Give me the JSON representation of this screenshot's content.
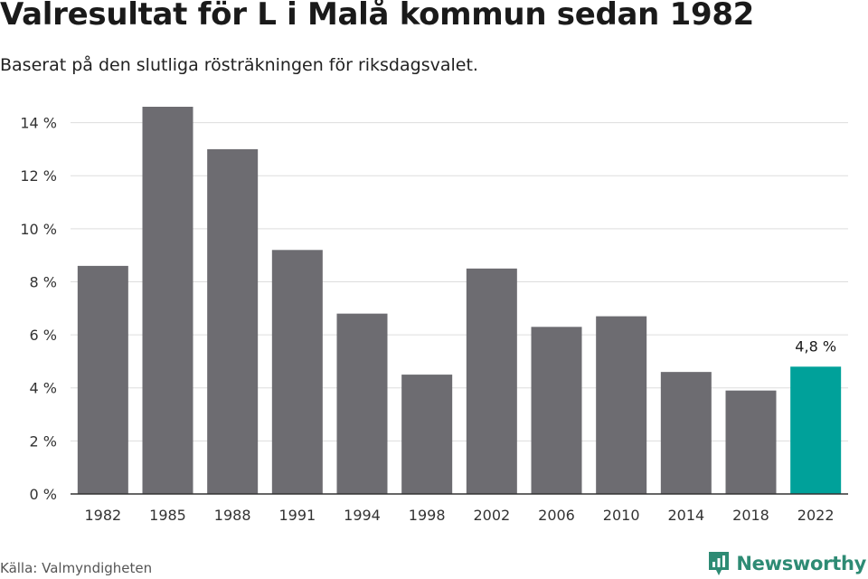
{
  "header": {
    "title": "Valresultat för L i Malå kommun sedan 1982",
    "subtitle": "Baserat på den slutliga rösträkningen för riksdagsvalet."
  },
  "footer": {
    "source": "Källa: Valmyndigheten",
    "brand": "Newsworthy"
  },
  "colors": {
    "bar": "#6d6c71",
    "highlight": "#00a19a",
    "grid": "#dddddd",
    "axis": "#333333",
    "brand": "#2e8b74"
  },
  "chart_data": {
    "type": "bar",
    "categories": [
      "1982",
      "1985",
      "1988",
      "1991",
      "1994",
      "1998",
      "2002",
      "2006",
      "2010",
      "2014",
      "2018",
      "2022"
    ],
    "values": [
      8.6,
      14.6,
      13.0,
      9.2,
      6.8,
      4.5,
      8.5,
      6.3,
      6.7,
      4.6,
      3.9,
      4.8
    ],
    "highlight_index": 11,
    "highlight_label": "4,8 %",
    "yticks": [
      "0 %",
      "2 %",
      "4 %",
      "6 %",
      "8 %",
      "10 %",
      "12 %",
      "14 %"
    ],
    "ytick_values": [
      0,
      2,
      4,
      6,
      8,
      10,
      12,
      14
    ],
    "ylim": [
      0,
      14.6
    ],
    "grid": true
  }
}
